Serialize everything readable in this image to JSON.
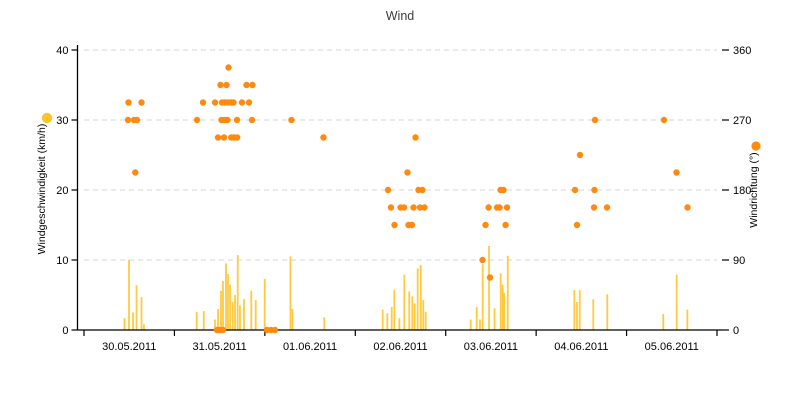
{
  "title": "Wind",
  "colors": {
    "speed_bar": "#FFC42A",
    "direction_dot": "#FF8A12",
    "grid": "#D6D6D6",
    "axis": "#000000",
    "tick_text": "#000000",
    "title_text": "#3C3C3C"
  },
  "chart_data": {
    "type": "mixed",
    "title": "Wind",
    "grid": true,
    "legend_position": "markers-beside-axes",
    "x_axis": {
      "unit": "days since 30.05.2011 00:00",
      "labels": [
        "30.05.2011",
        "31.05.2011",
        "01.06.2011",
        "02.06.2011",
        "03.06.2011",
        "04.06.2011",
        "05.06.2011"
      ],
      "range_days": [
        0,
        7
      ]
    },
    "y_left": {
      "label": "Windgeschwindigkeit (km/h)",
      "ticks": [
        0,
        10,
        20,
        30,
        40
      ],
      "range": [
        0,
        40
      ]
    },
    "y_right": {
      "label": "Windrichtung (°)",
      "ticks": [
        0,
        90,
        180,
        270,
        360
      ],
      "range": [
        0,
        360
      ]
    },
    "series": [
      {
        "name": "Windgeschwindigkeit",
        "type": "bar",
        "axis": "left",
        "unit": "km/h",
        "color": "#FFC42A",
        "points": [
          [
            0.448,
            1.7
          ],
          [
            0.498,
            10.0
          ],
          [
            0.542,
            2.5
          ],
          [
            0.581,
            6.4
          ],
          [
            0.636,
            4.7
          ],
          [
            0.663,
            0.8
          ],
          [
            1.246,
            2.6
          ],
          [
            1.324,
            2.7
          ],
          [
            1.449,
            1.5
          ],
          [
            1.482,
            3.0
          ],
          [
            1.515,
            5.6
          ],
          [
            1.537,
            7.0
          ],
          [
            1.57,
            9.5
          ],
          [
            1.592,
            8.0
          ],
          [
            1.615,
            6.5
          ],
          [
            1.644,
            4.0
          ],
          [
            1.67,
            5.0
          ],
          [
            1.7,
            10.7
          ],
          [
            1.725,
            3.5
          ],
          [
            1.769,
            4.4
          ],
          [
            1.85,
            5.6
          ],
          [
            1.899,
            4.3
          ],
          [
            1.998,
            7.3
          ],
          [
            2.283,
            10.5
          ],
          [
            2.306,
            3.0
          ],
          [
            2.657,
            1.8
          ],
          [
            3.303,
            2.9
          ],
          [
            3.354,
            2.4
          ],
          [
            3.403,
            3.3
          ],
          [
            3.432,
            5.7
          ],
          [
            3.487,
            1.7
          ],
          [
            3.542,
            7.9
          ],
          [
            3.597,
            5.5
          ],
          [
            3.631,
            4.8
          ],
          [
            3.657,
            3.8
          ],
          [
            3.69,
            8.8
          ],
          [
            3.724,
            9.3
          ],
          [
            3.752,
            4.3
          ],
          [
            3.779,
            2.6
          ],
          [
            4.276,
            1.5
          ],
          [
            4.343,
            3.3
          ],
          [
            4.379,
            1.5
          ],
          [
            4.409,
            9.4
          ],
          [
            4.479,
            12.0
          ],
          [
            4.54,
            3.1
          ],
          [
            4.608,
            8.1
          ],
          [
            4.63,
            6.5
          ],
          [
            4.648,
            5.3
          ],
          [
            4.686,
            10.6
          ],
          [
            5.422,
            5.7
          ],
          [
            5.452,
            4.0
          ],
          [
            5.482,
            5.7
          ],
          [
            5.632,
            4.4
          ],
          [
            5.787,
            5.1
          ],
          [
            6.406,
            2.3
          ],
          [
            6.554,
            7.9
          ],
          [
            6.672,
            2.9
          ]
        ]
      },
      {
        "name": "Windrichtung",
        "type": "scatter",
        "axis": "right",
        "unit": "°",
        "color": "#FF8A12",
        "points": [
          [
            0.487,
            270
          ],
          [
            0.492,
            292.5
          ],
          [
            0.553,
            270
          ],
          [
            0.567,
            202.5
          ],
          [
            0.586,
            270
          ],
          [
            0.636,
            292.5
          ],
          [
            1.25,
            270
          ],
          [
            1.316,
            292.5
          ],
          [
            1.449,
            292.5
          ],
          [
            1.471,
            0
          ],
          [
            1.482,
            247.5
          ],
          [
            1.504,
            0
          ],
          [
            1.509,
            315
          ],
          [
            1.52,
            270
          ],
          [
            1.526,
            292.5
          ],
          [
            1.537,
            0
          ],
          [
            1.548,
            247.5
          ],
          [
            1.554,
            270
          ],
          [
            1.559,
            292.5
          ],
          [
            1.576,
            315
          ],
          [
            1.587,
            270
          ],
          [
            1.592,
            292.5
          ],
          [
            1.598,
            337.5
          ],
          [
            1.626,
            292.5
          ],
          [
            1.628,
            247.5
          ],
          [
            1.653,
            292.5
          ],
          [
            1.659,
            247.5
          ],
          [
            1.692,
            270
          ],
          [
            1.694,
            247.5
          ],
          [
            1.747,
            292.5
          ],
          [
            1.797,
            315
          ],
          [
            1.825,
            292.5
          ],
          [
            1.858,
            270
          ],
          [
            1.863,
            315
          ],
          [
            2.024,
            0
          ],
          [
            2.068,
            0
          ],
          [
            2.112,
            0
          ],
          [
            2.294,
            270
          ],
          [
            2.648,
            247.5
          ],
          [
            3.362,
            180
          ],
          [
            3.395,
            157.5
          ],
          [
            3.434,
            135
          ],
          [
            3.5,
            157.5
          ],
          [
            3.539,
            157.5
          ],
          [
            3.577,
            202.5
          ],
          [
            3.588,
            135
          ],
          [
            3.627,
            135
          ],
          [
            3.644,
            157.5
          ],
          [
            3.666,
            247.5
          ],
          [
            3.699,
            180
          ],
          [
            3.716,
            157.5
          ],
          [
            3.743,
            180
          ],
          [
            3.765,
            157.5
          ],
          [
            4.407,
            90
          ],
          [
            4.44,
            135
          ],
          [
            4.474,
            157.5
          ],
          [
            4.49,
            67.5
          ],
          [
            4.568,
            157.5
          ],
          [
            4.595,
            157.5
          ],
          [
            4.606,
            180
          ],
          [
            4.639,
            180
          ],
          [
            4.662,
            135
          ],
          [
            4.678,
            157.5
          ],
          [
            5.43,
            180
          ],
          [
            5.452,
            135
          ],
          [
            5.485,
            225
          ],
          [
            5.64,
            157.5
          ],
          [
            5.645,
            180
          ],
          [
            5.651,
            270
          ],
          [
            5.784,
            157.5
          ],
          [
            6.414,
            270
          ],
          [
            6.552,
            202.5
          ],
          [
            6.674,
            157.5
          ]
        ]
      }
    ]
  }
}
